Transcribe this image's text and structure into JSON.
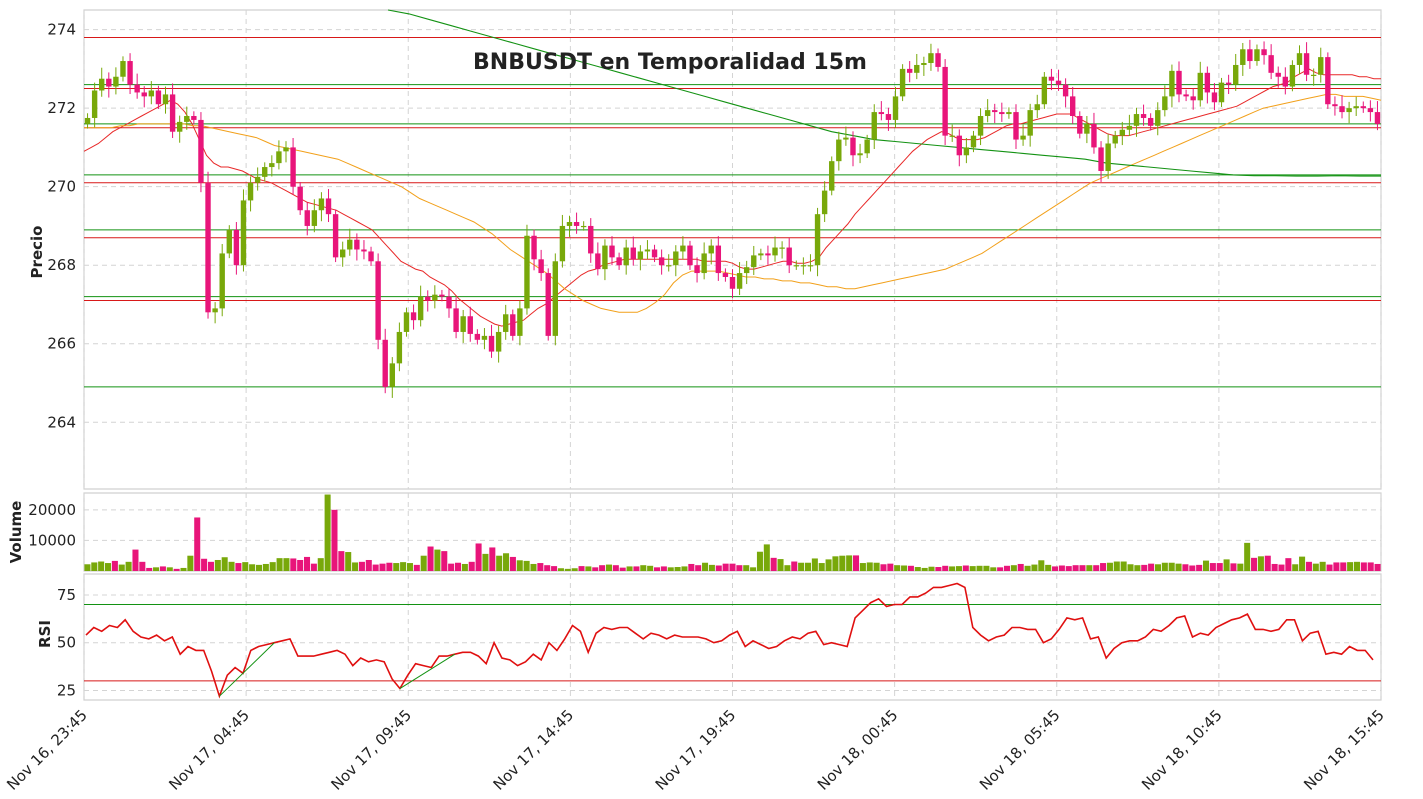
{
  "chart_data": [
    {
      "type": "candlestick",
      "title": "BNBUSDT en Temporalidad 15m",
      "ylabel": "Precio",
      "ylim": [
        262.3,
        274.5
      ],
      "yticks": [
        264,
        266,
        268,
        270,
        272,
        274
      ],
      "xticks": [
        "Nov 16, 23:45",
        "Nov 17, 04:45",
        "Nov 17, 09:45",
        "Nov 17, 14:45",
        "Nov 17, 19:45",
        "Nov 18, 00:45",
        "Nov 18, 05:45",
        "Nov 18, 10:45",
        "Nov 18, 15:45"
      ],
      "grid": true,
      "candle_colors": {
        "up": "#78a80a",
        "down": "#e8157a"
      },
      "close": [
        271.75,
        272.45,
        272.75,
        272.55,
        272.8,
        273.2,
        272.6,
        272.4,
        272.3,
        272.45,
        272.1,
        272.35,
        271.4,
        271.65,
        271.8,
        271.7,
        270.1,
        266.8,
        266.9,
        268.3,
        268.9,
        268.0,
        269.65,
        270.1,
        270.25,
        270.5,
        270.6,
        270.9,
        271.0,
        270.0,
        269.4,
        269.0,
        269.4,
        269.7,
        269.3,
        268.2,
        268.4,
        268.65,
        268.4,
        268.35,
        268.1,
        266.1,
        264.9,
        265.5,
        266.3,
        266.8,
        266.6,
        267.2,
        267.1,
        267.25,
        267.2,
        266.9,
        266.3,
        266.7,
        266.25,
        266.1,
        266.2,
        265.8,
        266.3,
        266.75,
        266.2,
        266.9,
        268.75,
        268.15,
        267.8,
        266.2,
        268.1,
        269.0,
        269.1,
        269.0,
        269.0,
        268.3,
        267.9,
        268.5,
        268.2,
        268.0,
        268.45,
        268.15,
        268.35,
        268.4,
        268.2,
        268.0,
        268.0,
        268.35,
        268.5,
        268.0,
        267.8,
        268.3,
        268.5,
        267.8,
        267.7,
        267.4,
        267.8,
        267.95,
        268.25,
        268.3,
        268.25,
        268.45,
        268.45,
        268.0,
        268.0,
        268.0,
        268.0,
        269.3,
        269.9,
        270.65,
        271.2,
        271.25,
        270.8,
        270.85,
        271.2,
        271.9,
        271.85,
        271.7,
        272.3,
        273.0,
        272.9,
        273.1,
        273.15,
        273.4,
        273.05,
        271.3,
        271.3,
        270.8,
        271.0,
        271.3,
        271.8,
        271.95,
        271.9,
        271.85,
        271.9,
        271.2,
        271.3,
        271.95,
        272.1,
        272.8,
        272.7,
        272.6,
        272.3,
        271.8,
        271.35,
        271.6,
        271.0,
        270.4,
        271.1,
        271.3,
        271.45,
        271.55,
        271.85,
        271.75,
        271.55,
        271.95,
        272.3,
        272.95,
        272.35,
        272.3,
        272.2,
        272.9,
        272.4,
        272.15,
        272.65,
        272.6,
        273.1,
        273.5,
        273.2,
        273.5,
        273.35,
        272.9,
        272.8,
        272.55,
        273.1,
        273.4,
        272.85,
        272.85,
        273.3,
        272.1,
        272.05,
        271.9,
        272.0,
        272.05,
        272.0,
        271.9,
        271.6
      ],
      "sma_fast": [
        270.9,
        271.0,
        271.1,
        271.25,
        271.4,
        271.5,
        271.6,
        271.7,
        271.8,
        271.9,
        272.0,
        272.1,
        272.2,
        272.1,
        271.9,
        271.6,
        271.2,
        270.8,
        270.6,
        270.5,
        270.5,
        270.45,
        270.4,
        270.3,
        270.2,
        270.15,
        270.1,
        270.0,
        269.9,
        269.8,
        269.7,
        269.6,
        269.55,
        269.5,
        269.45,
        269.4,
        269.3,
        269.2,
        269.1,
        269.0,
        268.9,
        268.7,
        268.5,
        268.3,
        268.1,
        268.0,
        267.9,
        267.85,
        267.7,
        267.6,
        267.5,
        267.35,
        267.15,
        267.0,
        266.85,
        266.7,
        266.6,
        266.5,
        266.45,
        266.5,
        266.55,
        266.6,
        266.75,
        266.9,
        267.0,
        267.15,
        267.3,
        267.45,
        267.6,
        267.75,
        267.85,
        267.9,
        268.0,
        268.05,
        268.1,
        268.15,
        268.15,
        268.15,
        268.15,
        268.15,
        268.15,
        268.15,
        268.15,
        268.15,
        268.15,
        268.15,
        268.1,
        268.1,
        268.1,
        268.1,
        268.05,
        267.95,
        267.9,
        267.9,
        267.95,
        268.0,
        268.05,
        268.1,
        268.1,
        268.05,
        268.05,
        268.1,
        268.2,
        268.45,
        268.65,
        268.85,
        269.05,
        269.3,
        269.5,
        269.7,
        269.9,
        270.1,
        270.3,
        270.5,
        270.7,
        270.9,
        271.05,
        271.2,
        271.3,
        271.4,
        271.35,
        271.25,
        271.2,
        271.2,
        271.2,
        271.25,
        271.35,
        271.45,
        271.55,
        271.6,
        271.6,
        271.65,
        271.7,
        271.75,
        271.8,
        271.85,
        271.85,
        271.85,
        271.75,
        271.65,
        271.55,
        271.45,
        271.35,
        271.3,
        271.3,
        271.3,
        271.35,
        271.4,
        271.45,
        271.5,
        271.55,
        271.6,
        271.65,
        271.7,
        271.75,
        271.8,
        271.85,
        271.9,
        271.95,
        272.0,
        272.05,
        272.15,
        272.25,
        272.35,
        272.45,
        272.55,
        272.6,
        272.65,
        272.8,
        272.9,
        273.0,
        272.9,
        272.85,
        272.85,
        272.85,
        272.85,
        272.85,
        272.8,
        272.8,
        272.75,
        272.75
      ],
      "sma_slow": [
        271.5,
        271.5,
        271.5,
        271.5,
        271.55,
        271.55,
        271.6,
        271.6,
        271.6,
        271.6,
        271.6,
        271.6,
        271.55,
        271.55,
        271.5,
        271.45,
        271.4,
        271.35,
        271.3,
        271.25,
        271.15,
        271.05,
        271.0,
        270.95,
        270.9,
        270.85,
        270.8,
        270.75,
        270.7,
        270.6,
        270.5,
        270.4,
        270.3,
        270.2,
        270.1,
        270.0,
        269.85,
        269.7,
        269.6,
        269.5,
        269.4,
        269.3,
        269.2,
        269.1,
        268.95,
        268.8,
        268.6,
        268.4,
        268.25,
        268.1,
        267.95,
        267.8,
        267.6,
        267.4,
        267.25,
        267.1,
        267.0,
        266.9,
        266.85,
        266.8,
        266.8,
        266.8,
        266.9,
        267.05,
        267.25,
        267.55,
        267.75,
        267.85,
        267.85,
        267.85,
        267.85,
        267.8,
        267.75,
        267.7,
        267.7,
        267.65,
        267.65,
        267.6,
        267.6,
        267.55,
        267.55,
        267.5,
        267.45,
        267.45,
        267.4,
        267.4,
        267.45,
        267.5,
        267.55,
        267.6,
        267.65,
        267.7,
        267.75,
        267.8,
        267.85,
        267.9,
        268.0,
        268.1,
        268.2,
        268.3,
        268.45,
        268.6,
        268.75,
        268.9,
        269.05,
        269.2,
        269.35,
        269.5,
        269.65,
        269.8,
        269.95,
        270.1,
        270.2,
        270.3,
        270.4,
        270.5,
        270.6,
        270.7,
        270.8,
        270.9,
        271.0,
        271.1,
        271.2,
        271.3,
        271.4,
        271.5,
        271.6,
        271.7,
        271.8,
        271.9,
        272.0,
        272.05,
        272.1,
        272.15,
        272.2,
        272.25,
        272.3,
        272.35,
        272.35,
        272.3,
        272.3,
        272.3,
        272.25,
        272.2
      ],
      "sma_long": [
        274.5,
        274.4,
        274.25,
        274.1,
        273.95,
        273.8,
        273.65,
        273.5,
        273.35,
        273.2,
        273.05,
        272.9,
        272.75,
        272.6,
        272.45,
        272.3,
        272.15,
        272.0,
        271.85,
        271.7,
        271.55,
        271.4,
        271.3,
        271.2,
        271.15,
        271.1,
        271.05,
        271.0,
        270.95,
        270.9,
        270.85,
        270.8,
        270.75,
        270.7,
        270.6,
        270.55,
        270.5,
        270.45,
        270.4,
        270.35,
        270.3,
        270.28,
        270.28,
        270.27,
        270.27,
        270.28,
        270.27,
        270.27
      ],
      "horizontal_levels": {
        "green": [
          272.6,
          271.6,
          270.3,
          268.9,
          267.2,
          264.9
        ],
        "red": [
          273.8,
          272.5,
          271.5,
          270.1,
          268.7,
          267.1
        ]
      }
    },
    {
      "type": "bar",
      "ylabel": "Volume",
      "ylim": [
        0,
        25500
      ],
      "yticks": [
        10000,
        20000
      ],
      "values": [
        2200,
        2800,
        3100,
        2600,
        3300,
        2100,
        3000,
        7000,
        3000,
        1000,
        1200,
        1500,
        1200,
        700,
        1000,
        5000,
        17500,
        4000,
        3000,
        3600,
        4500,
        3000,
        2600,
        2900,
        2200,
        2000,
        2300,
        2900,
        4200,
        4200,
        4100,
        3600,
        4600,
        2400,
        4200,
        25000,
        20000,
        6500,
        6200,
        2800,
        3000,
        3600,
        2100,
        2400,
        2700,
        2600,
        2900,
        2600,
        2000,
        5000,
        8000,
        7000,
        6500,
        2400,
        2700,
        2300,
        3000,
        9000,
        5600,
        7700,
        5000,
        5800,
        4600,
        3500,
        3300,
        2300,
        2600,
        1900,
        1600,
        900,
        700,
        900,
        1600,
        1500,
        1200,
        1900,
        2100,
        1900,
        1100,
        1500,
        1500,
        1900,
        1700,
        1200,
        1500,
        1200,
        1300,
        1500,
        2300,
        1900,
        2700,
        2000,
        1800,
        2400,
        2400,
        1900,
        1900,
        1200,
        6300,
        8700,
        4300,
        3900,
        1900,
        3100,
        2700,
        2700,
        4100,
        2600,
        3800,
        4800,
        5000,
        5100,
        5100,
        2600,
        2800,
        2700,
        2200,
        2400,
        1900,
        1800,
        1700,
        1300,
        1000,
        1400,
        1300,
        1700,
        1500,
        1600,
        1800,
        1600,
        1700,
        1700,
        1200,
        1200,
        1700,
        1900,
        2300,
        1700,
        2100,
        3500,
        2000,
        1500,
        1800,
        1600,
        1900,
        1900,
        1900,
        1900,
        2600,
        2700,
        3100,
        3100,
        2200,
        1900,
        2000,
        2400,
        2200,
        2700,
        2700,
        2400,
        2200,
        1800,
        2000,
        3400,
        2600,
        2600,
        3800,
        2500,
        2400,
        9200,
        4300,
        4800,
        5000,
        2300,
        2100,
        4200,
        2200,
        4700,
        3000,
        2400,
        3000,
        2100,
        2800,
        2800,
        2900,
        3000,
        2800,
        2800,
        2300
      ]
    },
    {
      "type": "line",
      "ylabel": "RSI",
      "ylim": [
        20,
        86
      ],
      "yticks": [
        25,
        50,
        75
      ],
      "levels": {
        "overbought": 70,
        "oversold": 30
      },
      "values": [
        54,
        58,
        56,
        59,
        58,
        62,
        56,
        53,
        52,
        54,
        51,
        53,
        44,
        48,
        46,
        46,
        35,
        22,
        33,
        37,
        34,
        46,
        48,
        49,
        50,
        51,
        52,
        43,
        43,
        43,
        44,
        45,
        46,
        44,
        38,
        42,
        40,
        41,
        40,
        31,
        26,
        33,
        39,
        38,
        37,
        43,
        43,
        44,
        45,
        45,
        43,
        39,
        50,
        42,
        41,
        38,
        40,
        44,
        41,
        50,
        46,
        52,
        59,
        56,
        45,
        55,
        58,
        57,
        58,
        58,
        55,
        52,
        55,
        54,
        52,
        54,
        53,
        53,
        53,
        52,
        50,
        51,
        54,
        56,
        48,
        51,
        49,
        47,
        48,
        51,
        53,
        52,
        55,
        56,
        49,
        50,
        49,
        48,
        63,
        67,
        71,
        73,
        69,
        70,
        70,
        74,
        74,
        76,
        79,
        79,
        80,
        81,
        79,
        58,
        54,
        51,
        53,
        54,
        58,
        58,
        57,
        57,
        50,
        52,
        57,
        63,
        62,
        63,
        52,
        53,
        42,
        47,
        50,
        51,
        51,
        53,
        57,
        56,
        59,
        63,
        64,
        53,
        55,
        54,
        58,
        60,
        62,
        63,
        65,
        57,
        57,
        56,
        57,
        62,
        62,
        51,
        55,
        56,
        44,
        45,
        44,
        48,
        46,
        46,
        41
      ],
      "trendlines": [
        {
          "from": [
            17,
            22
          ],
          "to": [
            24,
            50
          ]
        },
        {
          "from": [
            40,
            26
          ],
          "to": [
            47,
            44
          ]
        }
      ]
    }
  ],
  "colors": {
    "up": "#78a80a",
    "down": "#e8157a",
    "grid": "#d4d4d4",
    "sma_fast": "#e82828",
    "sma_slow": "#f2a01a",
    "sma_long": "#139213",
    "rsi_line": "#e01010"
  }
}
